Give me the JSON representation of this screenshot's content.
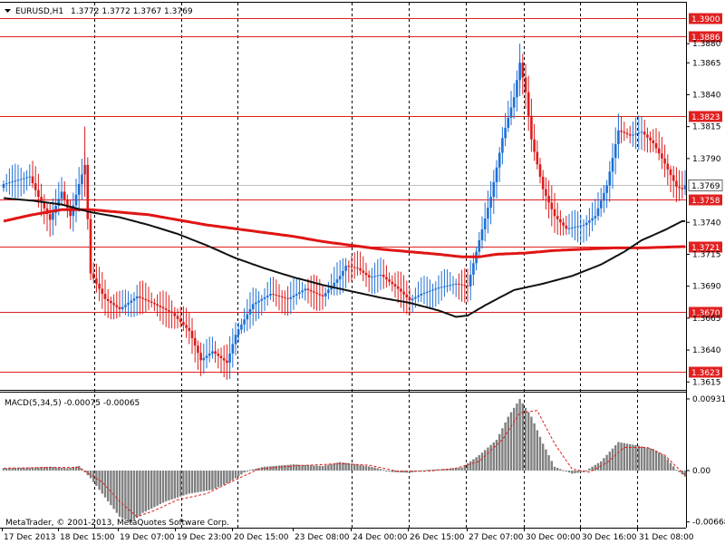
{
  "header": {
    "symbol": "EURUSD,H1",
    "ohlc": "1.3772 1.3772 1.3767 1.3769"
  },
  "macd_header": "MACD(5,34,5) -0.00075 -0.00065",
  "copyright": "MetaTrader, © 2001-2013, MetaQuotes Software Corp.",
  "colors": {
    "background": "#ffffff",
    "bull_candle": "#1e6fd6",
    "bear_candle": "#dd1c1c",
    "level_line": "#e02020",
    "ma_red": "#e01515",
    "ma_black": "#111111",
    "grid_vertical": "#000000",
    "macd_hist": "#808080",
    "macd_signal": "#e02020",
    "current_price_line": "#c0c0c0"
  },
  "chart_data": [
    {
      "type": "candlestick",
      "title": "EURUSD,H1",
      "price_axis_ticks": [
        "1.3880",
        "1.3865",
        "1.3840",
        "1.3815",
        "1.3790",
        "1.3740",
        "1.3715",
        "1.3690",
        "1.3665",
        "1.3640",
        "1.3615"
      ],
      "tick_values": [
        1.388,
        1.3865,
        1.384,
        1.3815,
        1.379,
        1.374,
        1.3715,
        1.369,
        1.3665,
        1.364,
        1.3615
      ],
      "ylim": [
        1.3607,
        1.391
      ],
      "levels": [
        {
          "value": 1.39,
          "label": "1.3900"
        },
        {
          "value": 1.3886,
          "label": "1.3886"
        },
        {
          "value": 1.3823,
          "label": "1.3823"
        },
        {
          "value": 1.3758,
          "label": "1.3758"
        },
        {
          "value": 1.3721,
          "label": "1.3721"
        },
        {
          "value": 1.367,
          "label": "1.3670"
        },
        {
          "value": 1.3623,
          "label": "1.3623"
        }
      ],
      "current_price": {
        "value": 1.3769,
        "label": "1.3769"
      },
      "x_labels": [
        "17 Dec 2013",
        "18 Dec 15:00",
        "19 Dec 07:00",
        "19 Dec 23:00",
        "20 Dec 15:00",
        "23 Dec 08:00",
        "24 Dec 00:00",
        "26 Dec 15:00",
        "27 Dec 07:00",
        "30 Dec 00:00",
        "30 Dec 16:00",
        "31 Dec 08:00"
      ],
      "close_anchors": [
        [
          0,
          1.377
        ],
        [
          9,
          1.3776
        ],
        [
          12,
          1.376
        ],
        [
          16,
          1.3742
        ],
        [
          20,
          1.3764
        ],
        [
          23,
          1.3745
        ],
        [
          26,
          1.377
        ],
        [
          28,
          1.3785
        ],
        [
          30,
          1.37
        ],
        [
          35,
          1.368
        ],
        [
          40,
          1.3672
        ],
        [
          46,
          1.3682
        ],
        [
          52,
          1.3676
        ],
        [
          58,
          1.3669
        ],
        [
          64,
          1.3655
        ],
        [
          68,
          1.3632
        ],
        [
          72,
          1.3639
        ],
        [
          77,
          1.363
        ],
        [
          80,
          1.3652
        ],
        [
          86,
          1.3676
        ],
        [
          92,
          1.3684
        ],
        [
          98,
          1.368
        ],
        [
          104,
          1.3688
        ],
        [
          110,
          1.3682
        ],
        [
          116,
          1.3698
        ],
        [
          118,
          1.3706
        ],
        [
          122,
          1.3704
        ],
        [
          126,
          1.3697
        ],
        [
          130,
          1.3699
        ],
        [
          136,
          1.3688
        ],
        [
          140,
          1.3679
        ],
        [
          144,
          1.3684
        ],
        [
          150,
          1.3689
        ],
        [
          156,
          1.3692
        ],
        [
          160,
          1.369
        ],
        [
          164,
          1.3726
        ],
        [
          168,
          1.376
        ],
        [
          172,
          1.3806
        ],
        [
          176,
          1.3838
        ],
        [
          178,
          1.3865
        ],
        [
          180,
          1.3842
        ],
        [
          182,
          1.3805
        ],
        [
          186,
          1.3766
        ],
        [
          190,
          1.3745
        ],
        [
          194,
          1.3735
        ],
        [
          200,
          1.3738
        ],
        [
          204,
          1.3745
        ],
        [
          208,
          1.3769
        ],
        [
          212,
          1.3812
        ],
        [
          216,
          1.3808
        ],
        [
          220,
          1.3811
        ],
        [
          224,
          1.3802
        ],
        [
          228,
          1.3786
        ],
        [
          232,
          1.3768
        ],
        [
          234,
          1.3766
        ],
        [
          235,
          1.3769
        ]
      ],
      "ma_black": [
        [
          0,
          1.3759
        ],
        [
          10,
          1.3757
        ],
        [
          20,
          1.3754
        ],
        [
          30,
          1.3748
        ],
        [
          40,
          1.3744
        ],
        [
          50,
          1.3738
        ],
        [
          60,
          1.3731
        ],
        [
          70,
          1.3722
        ],
        [
          80,
          1.3712
        ],
        [
          90,
          1.3704
        ],
        [
          100,
          1.3697
        ],
        [
          110,
          1.3691
        ],
        [
          120,
          1.3686
        ],
        [
          130,
          1.3681
        ],
        [
          140,
          1.3677
        ],
        [
          150,
          1.3671
        ],
        [
          156,
          1.3666
        ],
        [
          160,
          1.3667
        ],
        [
          166,
          1.3675
        ],
        [
          176,
          1.3687
        ],
        [
          186,
          1.3692
        ],
        [
          196,
          1.3698
        ],
        [
          206,
          1.3707
        ],
        [
          214,
          1.3717
        ],
        [
          220,
          1.3726
        ],
        [
          228,
          1.3734
        ],
        [
          234,
          1.3741
        ]
      ],
      "ma_red": [
        [
          0,
          1.3741
        ],
        [
          10,
          1.3746
        ],
        [
          20,
          1.375
        ],
        [
          30,
          1.375
        ],
        [
          40,
          1.3748
        ],
        [
          50,
          1.3746
        ],
        [
          60,
          1.3742
        ],
        [
          70,
          1.3738
        ],
        [
          80,
          1.3735
        ],
        [
          90,
          1.3732
        ],
        [
          100,
          1.3729
        ],
        [
          110,
          1.3725
        ],
        [
          120,
          1.3722
        ],
        [
          130,
          1.3719
        ],
        [
          140,
          1.3717
        ],
        [
          150,
          1.3715
        ],
        [
          158,
          1.3713
        ],
        [
          164,
          1.3713
        ],
        [
          170,
          1.3715
        ],
        [
          180,
          1.3716
        ],
        [
          190,
          1.3718
        ],
        [
          200,
          1.3719
        ],
        [
          210,
          1.372
        ],
        [
          220,
          1.372
        ],
        [
          234,
          1.3721
        ]
      ]
    },
    {
      "type": "bar",
      "title": "MACD(5,34,5) -0.00075 -0.00065",
      "axis_ticks": [
        "0.00931",
        "0.00",
        "-0.00668"
      ],
      "tick_values": [
        0.00931,
        0,
        -0.00668
      ],
      "ylim": [
        -0.0075,
        0.01
      ],
      "hist_anchors": [
        [
          0,
          0.0003
        ],
        [
          10,
          0.0004
        ],
        [
          16,
          0.0005
        ],
        [
          22,
          0.0003
        ],
        [
          26,
          0.0006
        ],
        [
          30,
          -0.001
        ],
        [
          36,
          -0.004
        ],
        [
          40,
          -0.006
        ],
        [
          44,
          -0.0068
        ],
        [
          48,
          -0.0055
        ],
        [
          56,
          -0.004
        ],
        [
          64,
          -0.003
        ],
        [
          72,
          -0.0025
        ],
        [
          78,
          -0.0015
        ],
        [
          84,
          0.0
        ],
        [
          90,
          0.0005
        ],
        [
          100,
          0.0008
        ],
        [
          110,
          0.0006
        ],
        [
          116,
          0.0011
        ],
        [
          122,
          0.0008
        ],
        [
          128,
          0.0004
        ],
        [
          134,
          -0.0002
        ],
        [
          140,
          -0.0003
        ],
        [
          146,
          0.0001
        ],
        [
          152,
          0.0002
        ],
        [
          158,
          0.0004
        ],
        [
          164,
          0.002
        ],
        [
          170,
          0.004
        ],
        [
          174,
          0.007
        ],
        [
          178,
          0.0093
        ],
        [
          182,
          0.007
        ],
        [
          186,
          0.0035
        ],
        [
          190,
          0.0005
        ],
        [
          196,
          -0.0004
        ],
        [
          200,
          -0.0002
        ],
        [
          206,
          0.0012
        ],
        [
          212,
          0.0037
        ],
        [
          218,
          0.0033
        ],
        [
          224,
          0.0028
        ],
        [
          228,
          0.0019
        ],
        [
          232,
          0.0001
        ],
        [
          235,
          -0.0008
        ]
      ],
      "signal_anchors": [
        [
          0,
          0.0003
        ],
        [
          16,
          0.0004
        ],
        [
          26,
          0.0004
        ],
        [
          34,
          -0.0015
        ],
        [
          40,
          -0.004
        ],
        [
          46,
          -0.006
        ],
        [
          52,
          -0.0052
        ],
        [
          60,
          -0.0038
        ],
        [
          70,
          -0.003
        ],
        [
          80,
          -0.0012
        ],
        [
          88,
          0.0002
        ],
        [
          100,
          0.0006
        ],
        [
          116,
          0.0009
        ],
        [
          126,
          0.0007
        ],
        [
          136,
          -0.0001
        ],
        [
          146,
          -0.0001
        ],
        [
          156,
          0.0003
        ],
        [
          164,
          0.0012
        ],
        [
          172,
          0.004
        ],
        [
          178,
          0.0075
        ],
        [
          184,
          0.0078
        ],
        [
          190,
          0.0035
        ],
        [
          196,
          0.0002
        ],
        [
          202,
          -0.0002
        ],
        [
          208,
          0.001
        ],
        [
          214,
          0.003
        ],
        [
          222,
          0.003
        ],
        [
          228,
          0.002
        ],
        [
          232,
          0.0005
        ],
        [
          235,
          -0.0006
        ]
      ]
    }
  ]
}
